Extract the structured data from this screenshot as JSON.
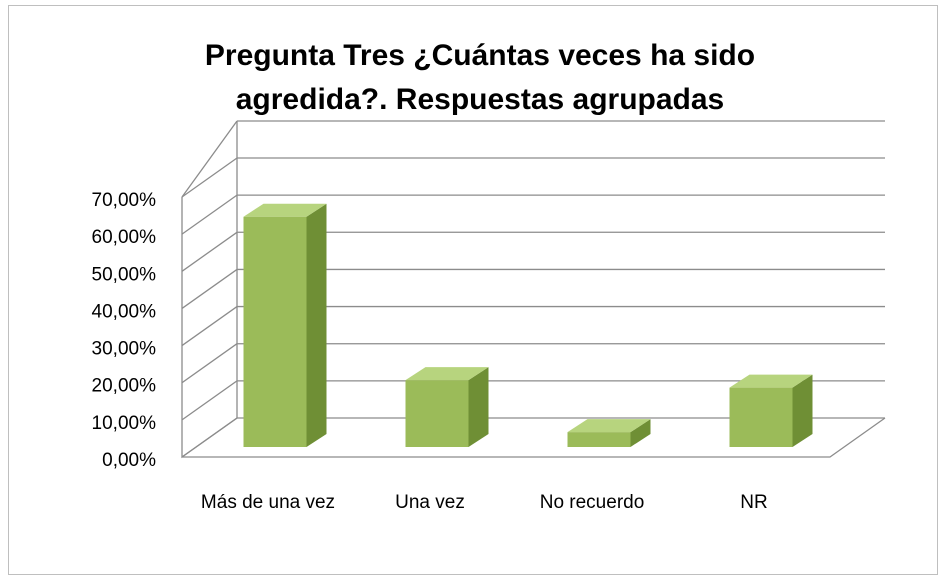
{
  "chart_data": {
    "type": "bar3d",
    "title": "Pregunta Tres ¿Cuántas veces ha sido agredida?.  Respuestas agrupadas",
    "categories": [
      "Más de una vez",
      "Una vez",
      "No recuerdo",
      "NR"
    ],
    "values": [
      62,
      18,
      4,
      16
    ],
    "color": "#9bbb59",
    "ylim": [
      0,
      70
    ],
    "yticks": [
      {
        "value": 0,
        "label": "0,00%"
      },
      {
        "value": 10,
        "label": "10,00%"
      },
      {
        "value": 20,
        "label": "20,00%"
      },
      {
        "value": 30,
        "label": "30,00%"
      },
      {
        "value": 40,
        "label": "40,00%"
      },
      {
        "value": 50,
        "label": "50,00%"
      },
      {
        "value": 60,
        "label": "60,00%"
      },
      {
        "value": 70,
        "label": "70,00%"
      }
    ],
    "grid": true
  }
}
